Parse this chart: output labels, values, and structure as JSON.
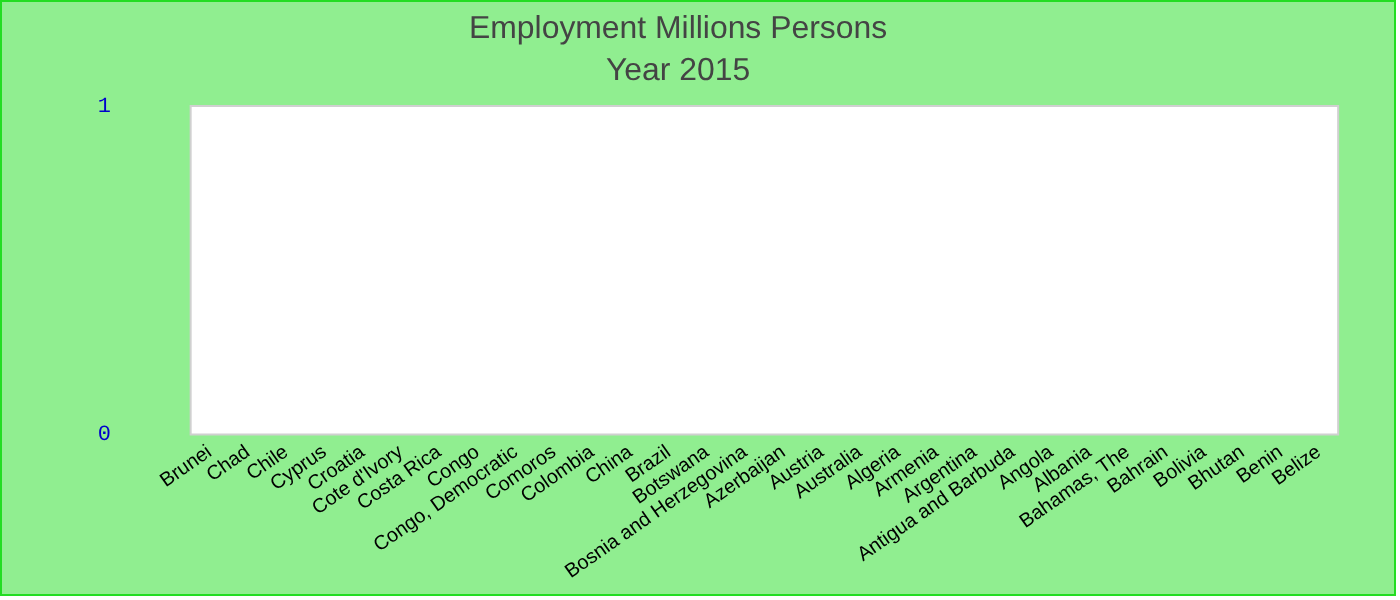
{
  "chart_data": {
    "type": "bar",
    "title": "Employment Millions Persons",
    "subtitle": "Year 2015",
    "categories": [
      "Brunei",
      "Chad",
      "Chile",
      "Cyprus",
      "Croatia",
      "Cote d'Ivory",
      "Costa Rica",
      "Congo",
      "Congo, Democratic",
      "Comoros",
      "Colombia",
      "China",
      "Brazil",
      "Botswana",
      "Bosnia and Herzegovina",
      "Azerbaijan",
      "Austria",
      "Australia",
      "Algeria",
      "Armenia",
      "Argentina",
      "Antigua and Barbuda",
      "Angola",
      "Albania",
      "Bahamas, The",
      "Bahrain",
      "Bolivia",
      "Bhutan",
      "Benin",
      "Belize"
    ],
    "values": [
      null,
      null,
      null,
      null,
      null,
      null,
      null,
      null,
      null,
      null,
      null,
      null,
      null,
      null,
      null,
      null,
      null,
      null,
      null,
      null,
      null,
      null,
      null,
      null,
      null,
      null,
      null,
      null,
      null,
      null
    ],
    "ylim": [
      0,
      1
    ],
    "yticks": [
      0,
      1
    ],
    "grid": false,
    "legend": false
  }
}
